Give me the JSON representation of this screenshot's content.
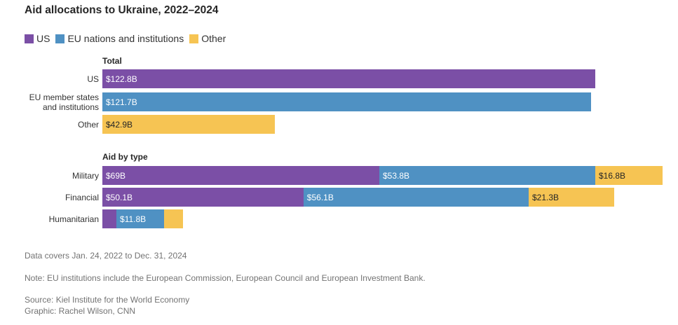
{
  "title": "Aid allocations to Ukraine, 2022–2024",
  "legend": [
    {
      "label": "US",
      "color": "#7b4fa6"
    },
    {
      "label": "EU nations and institutions",
      "color": "#4f91c3"
    },
    {
      "label": "Other",
      "color": "#f6c453"
    }
  ],
  "chart_data": [
    {
      "type": "bar",
      "orientation": "horizontal",
      "section_title": "Total",
      "categories": [
        "US",
        "EU member states and institutions",
        "Other"
      ],
      "category_lines": [
        [
          "US"
        ],
        [
          "EU member states",
          "and institutions"
        ],
        [
          "Other"
        ]
      ],
      "values": [
        122.8,
        121.7,
        42.9
      ],
      "value_labels": [
        "$122.8B",
        "$121.7B",
        "$42.9B"
      ],
      "colors": [
        "#7b4fa6",
        "#4f91c3",
        "#f6c453"
      ],
      "unit": "$B"
    },
    {
      "type": "bar",
      "orientation": "horizontal",
      "stacked": true,
      "section_title": "Aid by type",
      "categories": [
        "Military",
        "Financial",
        "Humanitarian"
      ],
      "series": [
        {
          "name": "US",
          "color": "#7b4fa6",
          "values": [
            69,
            50.1,
            3.5
          ],
          "labels": [
            "$69B",
            "$50.1B",
            ""
          ]
        },
        {
          "name": "EU nations and institutions",
          "color": "#4f91c3",
          "values": [
            53.8,
            56.1,
            11.8
          ],
          "labels": [
            "$53.8B",
            "$56.1B",
            "$11.8B"
          ]
        },
        {
          "name": "Other",
          "color": "#f6c453",
          "values": [
            16.8,
            21.3,
            4.8
          ],
          "labels": [
            "$16.8B",
            "$21.3B",
            ""
          ]
        }
      ],
      "unit": "$B"
    }
  ],
  "footer": {
    "coverage": "Data covers Jan. 24, 2022 to Dec. 31, 2024",
    "note": "Note: EU institutions include the European Commission, European Council and European Investment Bank.",
    "source": "Source: Kiel Institute for the World Economy",
    "graphic": "Graphic: Rachel Wilson, CNN"
  }
}
